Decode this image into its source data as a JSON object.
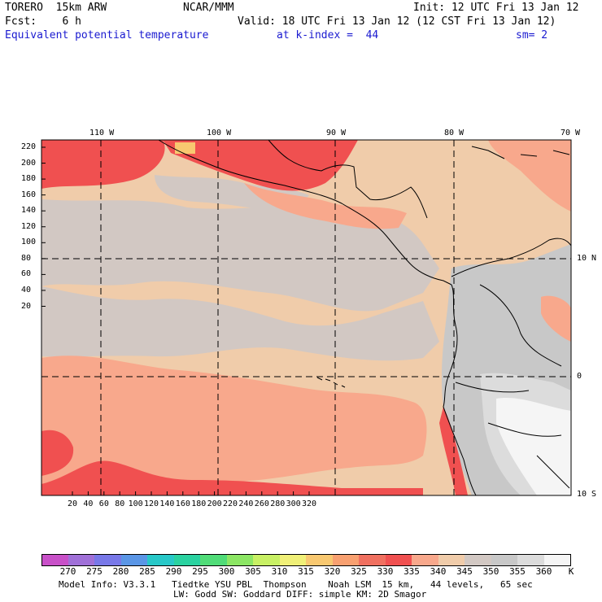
{
  "header": {
    "model_name": "TORERO  15km ARW",
    "org": "NCAR/MMM",
    "init": "Init: 12 UTC Fri 13 Jan 12",
    "fcst": "Fcst:    6 h",
    "valid": "Valid: 18 UTC Fri 13 Jan 12 (12 CST Fri 13 Jan 12)",
    "field": "Equivalent potential temperature",
    "level": "at k-index =  44",
    "smoothing": "sm= 2"
  },
  "axes": {
    "top_lon_labels": [
      "110 W",
      "100 W",
      "90 W",
      "80 W",
      "70 W"
    ],
    "right_lat_labels": [
      "10 N",
      "0",
      "10 S"
    ],
    "left_y_ticks": [
      "220",
      "200",
      "180",
      "160",
      "140",
      "120",
      "100",
      "80",
      "60",
      "40",
      "20"
    ],
    "bottom_x_ticks": [
      "20",
      "40",
      "60",
      "80",
      "100",
      "120",
      "140",
      "160",
      "180",
      "200",
      "220",
      "240",
      "260",
      "280",
      "300",
      "320"
    ]
  },
  "colorbar": {
    "unit": "K",
    "labels": [
      "270",
      "275",
      "280",
      "285",
      "290",
      "295",
      "300",
      "305",
      "310",
      "315",
      "320",
      "325",
      "330",
      "335",
      "340",
      "345",
      "350",
      "355",
      "360"
    ],
    "colors": [
      "#c850c8",
      "#a070d8",
      "#7878e8",
      "#5a96e6",
      "#28c8c8",
      "#2ad2a0",
      "#50dc78",
      "#8ce664",
      "#c8f064",
      "#f0f078",
      "#f8c870",
      "#f8a070",
      "#f07060",
      "#f05050",
      "#f8a88c",
      "#f0ccaa",
      "#d2c8c3",
      "#c8c8c8",
      "#dcdcdc",
      "#f5f5f5"
    ]
  },
  "footer": {
    "line1": "Model Info: V3.3.1   Tiedtke YSU PBL  Thompson    Noah LSM  15 km,   44 levels,   65 sec",
    "line2": "LW: Godd SW: Goddard DIFF: simple KM: 2D Smagor"
  },
  "map_colors": {
    "ocean_base": "#f0ccaa",
    "cool_band": "#d2c8c3",
    "warm": "#f8a88c",
    "hot": "#f05050",
    "andes_light": "#dcdcdc",
    "andes_white": "#f5f5f5",
    "peak": "#f8c870"
  }
}
